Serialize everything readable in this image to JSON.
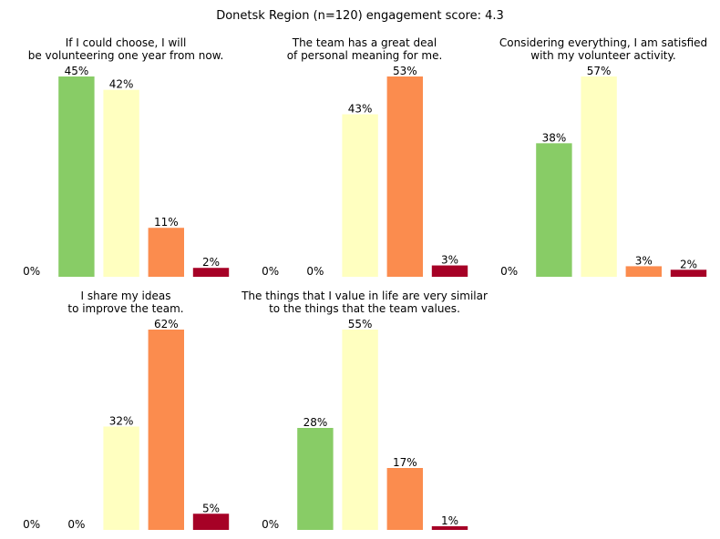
{
  "title": "Donetsk Region (n=120) engagement score: 4.3",
  "colors": [
    "#88cc66",
    "#ffffc0",
    "#fb8c4e",
    "#a60126"
  ],
  "value_suffix": "%",
  "chart_data": [
    {
      "type": "bar",
      "title_lines": [
        "If I could choose, I will",
        "be volunteering one year from now."
      ],
      "categories": [
        "1",
        "2",
        "3",
        "4",
        "5"
      ],
      "values": [
        0,
        45,
        42,
        11,
        2
      ],
      "labels": [
        "0%",
        "45%",
        "42%",
        "11%",
        "2%"
      ]
    },
    {
      "type": "bar",
      "title_lines": [
        "The team has a great deal",
        "of personal meaning for me."
      ],
      "categories": [
        "1",
        "2",
        "3",
        "4",
        "5"
      ],
      "values": [
        0,
        0,
        43,
        53,
        3
      ],
      "labels": [
        "0%",
        "0%",
        "43%",
        "53%",
        "3%"
      ]
    },
    {
      "type": "bar",
      "title_lines": [
        "Considering everything, I am satisfied",
        "with my volunteer activity."
      ],
      "categories": [
        "1",
        "2",
        "3",
        "4",
        "5"
      ],
      "values": [
        0,
        38,
        57,
        3,
        2
      ],
      "labels": [
        "0%",
        "38%",
        "57%",
        "3%",
        "2%"
      ]
    },
    {
      "type": "bar",
      "title_lines": [
        "I share my ideas",
        "to improve the team."
      ],
      "categories": [
        "1",
        "2",
        "3",
        "4",
        "5"
      ],
      "values": [
        0,
        0,
        32,
        62,
        5
      ],
      "labels": [
        "0%",
        "0%",
        "32%",
        "62%",
        "5%"
      ]
    },
    {
      "type": "bar",
      "title_lines": [
        "The things that I value in life are very similar",
        "to the things that the team values."
      ],
      "categories": [
        "1",
        "2",
        "3",
        "4",
        "5"
      ],
      "values": [
        0,
        28,
        55,
        17,
        1
      ],
      "labels": [
        "0%",
        "28%",
        "55%",
        "17%",
        "1%"
      ]
    }
  ]
}
